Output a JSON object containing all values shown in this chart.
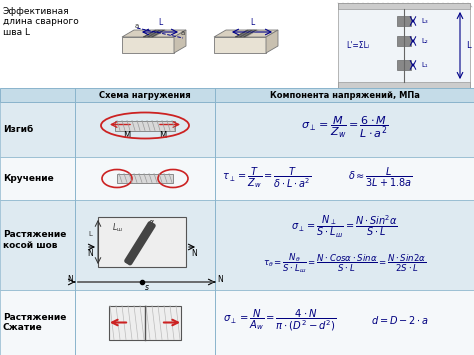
{
  "title_text": "Эффективная\nдлина сварного\nшва L",
  "bg_color": "#ffffff",
  "header_bg": "#c5dce8",
  "row_bg_light": "#deeaf1",
  "row_bg_white": "#f5f8fa",
  "table_border": "#8ab4cc",
  "col1_header": "Схема нагружения",
  "col2_header": "Компонента напряжений, МПа",
  "row1_label": "Изгиб",
  "row2_label": "Кручение",
  "row3_label": "Растяжение\nкосой шов",
  "row4_label": "Растяжение\nСжатие",
  "formula_color": "#000080",
  "red_color": "#cc2222",
  "dark_color": "#444444",
  "weld_dark": "#555555",
  "weld_gray": "#888888"
}
